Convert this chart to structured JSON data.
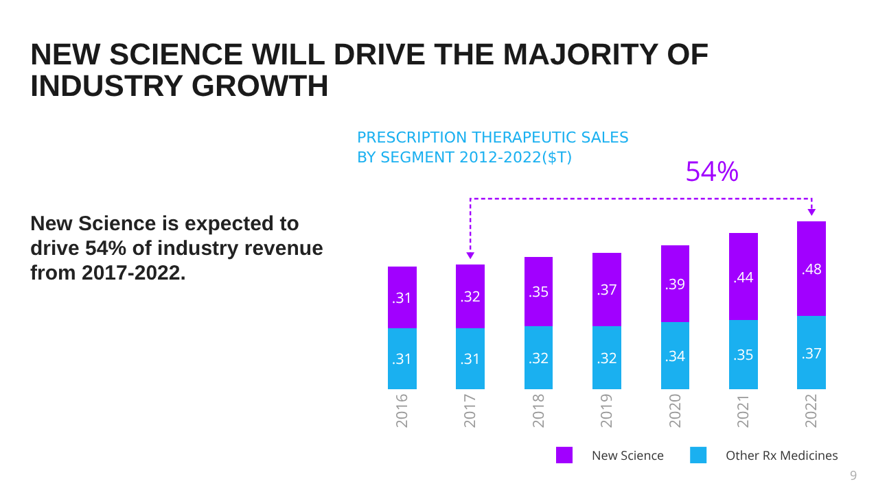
{
  "chart_data": {
    "type": "bar",
    "stacked": true,
    "title": "NEW SCIENCE WILL DRIVE THE MAJORITY OF INDUSTRY GROWTH",
    "subtitle": "PRESCRIPTION THERAPEUTIC SALES BY SEGMENT 2012-2022($T)",
    "categories": [
      "2016",
      "2017",
      "2018",
      "2019",
      "2020",
      "2021",
      "2022"
    ],
    "series": [
      {
        "name": "Other Rx Medicines",
        "color": "#1ab0f0",
        "values": [
          0.31,
          0.31,
          0.32,
          0.32,
          0.34,
          0.35,
          0.37
        ],
        "value_labels": [
          ".31",
          ".31",
          ".32",
          ".32",
          ".34",
          ".35",
          ".37"
        ]
      },
      {
        "name": "New Science",
        "color": "#a100ff",
        "values": [
          0.31,
          0.32,
          0.35,
          0.37,
          0.39,
          0.44,
          0.48
        ],
        "value_labels": [
          ".31",
          ".32",
          ".35",
          ".37",
          ".39",
          ".44",
          ".48"
        ]
      }
    ],
    "annotations": [
      "New Science is expected to drive 54% of industry revenue from 2017-2022.",
      "54%",
      "9"
    ],
    "legend": "bottom right",
    "grid": false,
    "tick_labels": "x"
  }
}
